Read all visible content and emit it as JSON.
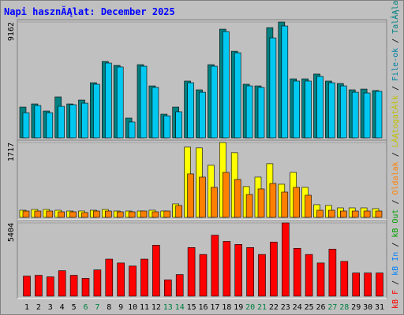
{
  "chart_data": [
    {
      "type": "bar",
      "title": "Napi hasznĂĄlat: December 2025",
      "categories": [
        "1",
        "2",
        "3",
        "4",
        "5",
        "6",
        "7",
        "8",
        "9",
        "10",
        "11",
        "12",
        "13",
        "14",
        "15",
        "16",
        "17",
        "18",
        "19",
        "20",
        "21",
        "22",
        "23",
        "24",
        "25",
        "26",
        "27",
        "28",
        "29",
        "30",
        "31"
      ],
      "category_colors": [
        "#000000",
        "#000000",
        "#000000",
        "#000000",
        "#000000",
        "#008040",
        "#008040",
        "#000000",
        "#000000",
        "#000000",
        "#000000",
        "#000000",
        "#008040",
        "#008040",
        "#000000",
        "#000000",
        "#000000",
        "#000000",
        "#000000",
        "#008040",
        "#008040",
        "#000000",
        "#000000",
        "#000000",
        "#000000",
        "#000000",
        "#008040",
        "#008040",
        "#000000",
        "#000000",
        "#000000"
      ],
      "series": [
        {
          "name": "TalĂĄlatok",
          "color": "#008080",
          "values": [
            2430,
            2680,
            2120,
            3240,
            2680,
            2990,
            4360,
            6040,
            5730,
            1560,
            5790,
            4110,
            1870,
            2430,
            4490,
            3800,
            5790,
            8600,
            6850,
            4240,
            4110,
            8720,
            9162,
            4670,
            4670,
            5050,
            4490,
            4300,
            3800,
            3860,
            3740
          ]
        },
        {
          "name": "File-ok",
          "color": "#00c8f0",
          "values": [
            1990,
            2560,
            1990,
            2490,
            2620,
            2740,
            4240,
            5920,
            5610,
            1250,
            5670,
            3990,
            1740,
            2060,
            4360,
            3610,
            5670,
            8410,
            6730,
            4110,
            3990,
            7910,
            8850,
            4490,
            4490,
            4860,
            4360,
            4110,
            3610,
            3550,
            3680
          ]
        }
      ],
      "ylim": [
        0,
        9162
      ],
      "yticks": [
        9162
      ]
    },
    {
      "type": "bar",
      "series": [
        {
          "name": "LĂĄtogatĂłk",
          "color": "#ffff00",
          "values": [
            163,
            181,
            181,
            163,
            145,
            145,
            163,
            181,
            145,
            145,
            145,
            163,
            145,
            308,
            1611,
            1593,
            1195,
            1717,
            1484,
            706,
            923,
            1231,
            760,
            1032,
            688,
            290,
            272,
            217,
            217,
            217,
            199
          ]
        },
        {
          "name": "Oldalak",
          "color": "#ff8000",
          "values": [
            145,
            145,
            145,
            127,
            127,
            109,
            145,
            145,
            127,
            127,
            145,
            127,
            145,
            272,
            996,
            923,
            688,
            1032,
            869,
            525,
            652,
            778,
            579,
            688,
            507,
            163,
            163,
            145,
            145,
            145,
            145
          ]
        }
      ],
      "ylim": [
        0,
        1717
      ],
      "yticks": [
        1717
      ]
    },
    {
      "type": "bar",
      "series": [
        {
          "name": "kB F",
          "color": "#ff0000",
          "values": [
            1479,
            1536,
            1422,
            1877,
            1536,
            1309,
            1934,
            2730,
            2446,
            2219,
            2730,
            3755,
            1195,
            1593,
            3584,
            3072,
            4495,
            4040,
            3812,
            3584,
            3072,
            3983,
            5404,
            3528,
            3072,
            2446,
            3470,
            2560,
            1707,
            1707,
            1707
          ]
        }
      ],
      "other_labels": [
        {
          "text": "kB In",
          "color": "#0080ff"
        },
        {
          "text": "kB Out",
          "color": "#00a000"
        }
      ],
      "legend_separator": " / ",
      "ylim": [
        0,
        5404
      ],
      "yticks": [
        5404
      ]
    }
  ]
}
